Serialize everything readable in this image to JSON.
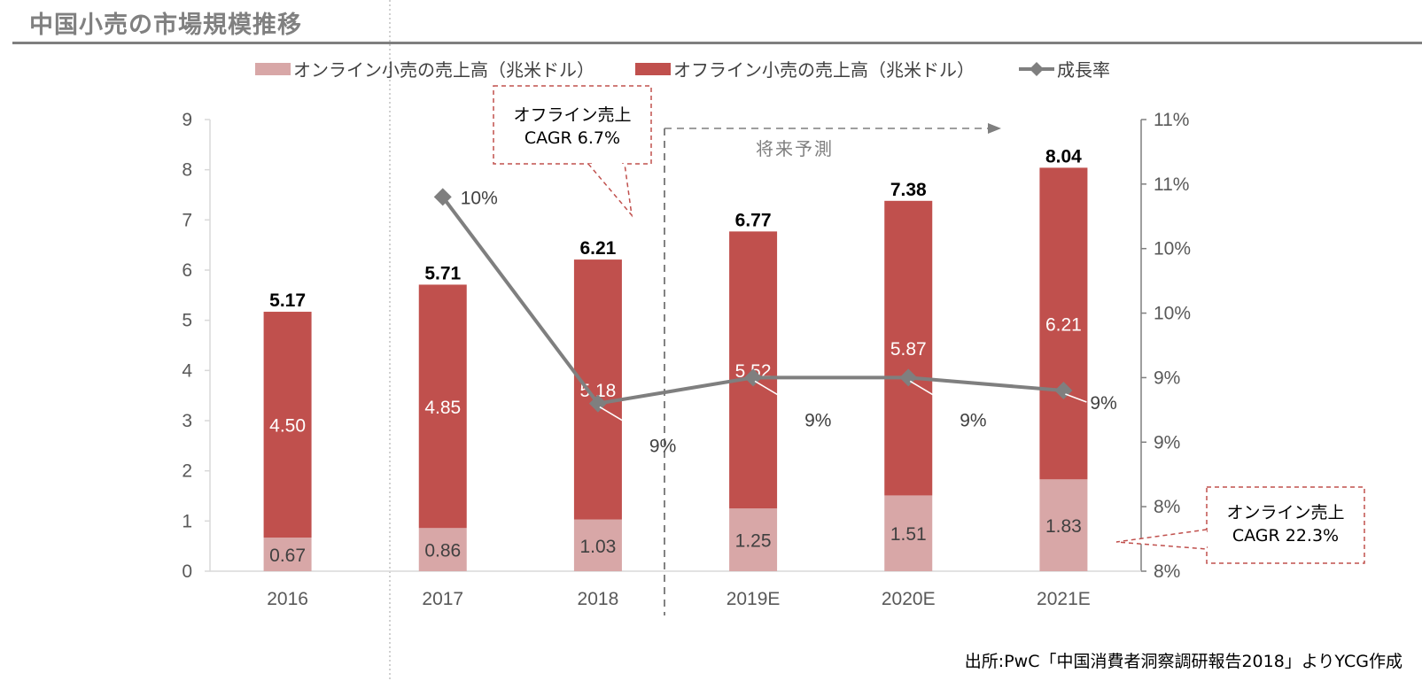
{
  "page": {
    "title": "中国小売の市場規模推移",
    "source": "出所:PwC「中国消費者洞察調研報告2018」よりYCG作成"
  },
  "colors": {
    "online": "#d8a7a7",
    "offline": "#c0504d",
    "rate_line": "#7f7f7f",
    "callout_border": "#c0504d"
  },
  "annotations": {
    "offline_cagr_line1": "オフライン売上",
    "offline_cagr_line2": "CAGR 6.7%",
    "online_cagr_line1": "オンライン売上",
    "online_cagr_line2": "CAGR 22.3%",
    "forecast_label": "将来予測"
  },
  "chart_data": {
    "type": "bar",
    "stacked": true,
    "categories": [
      "2016",
      "2017",
      "2018",
      "2019E",
      "2020E",
      "2021E"
    ],
    "series": [
      {
        "name": "オンライン小売の売上高（兆米ドル）",
        "values": [
          0.67,
          0.86,
          1.03,
          1.25,
          1.51,
          1.83
        ],
        "color": "#d8a7a7",
        "labels": [
          "0.67",
          "0.86",
          "1.03",
          "1.25",
          "1.51",
          "1.83"
        ]
      },
      {
        "name": "オフライン小売の売上高（兆米ドル）",
        "values": [
          4.5,
          4.85,
          5.18,
          5.52,
          5.87,
          6.21
        ],
        "color": "#c0504d",
        "labels": [
          "4.50",
          "4.85",
          "5.18",
          "5.52",
          "5.87",
          "6.21"
        ]
      }
    ],
    "totals": [
      5.17,
      5.71,
      6.21,
      6.77,
      7.38,
      8.04
    ],
    "total_labels": [
      "5.17",
      "5.71",
      "6.21",
      "6.77",
      "7.38",
      "8.04"
    ],
    "line_series": {
      "name": "成長率",
      "axis": "secondary",
      "values": [
        null,
        10.4,
        8.8,
        9.0,
        9.0,
        8.9
      ],
      "labels": [
        "",
        "10%",
        "9%",
        "9%",
        "9%",
        "9%"
      ]
    },
    "y_axis": {
      "min": 0,
      "max": 9,
      "ticks": [
        "0",
        "1",
        "2",
        "3",
        "4",
        "5",
        "6",
        "7",
        "8",
        "9"
      ]
    },
    "y2_axis": {
      "min": 7.5,
      "max": 11.0,
      "ticks": [
        "8%",
        "8%",
        "9%",
        "9%",
        "10%",
        "10%",
        "11%",
        "11%"
      ]
    },
    "legend_position": "top"
  }
}
